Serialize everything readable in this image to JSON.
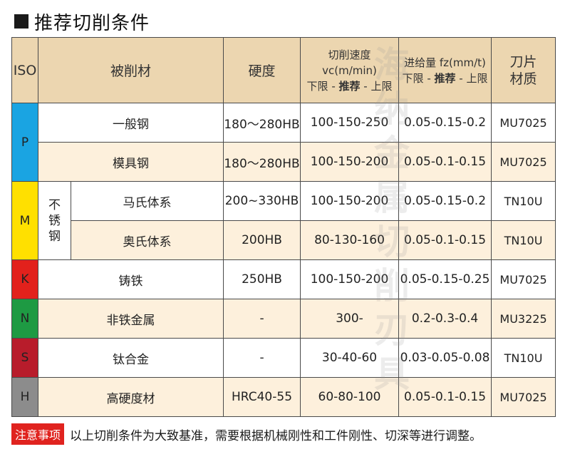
{
  "title": "推荐切削条件",
  "header": {
    "iso": "ISO",
    "material": "被削材",
    "hardness": "硬度",
    "speed_line1": "切削速度 vc(m/min)",
    "speed_line2_a": "下限 - ",
    "speed_line2_b": "推荐",
    "speed_line2_c": " - 上限",
    "feed_line1": "进给量 fz(mm/t)",
    "feed_line2_a": "下限 - ",
    "feed_line2_b": "推荐",
    "feed_line2_c": " - 上限",
    "blade_line1": "刀片",
    "blade_line2": "材质"
  },
  "groups": {
    "P": "P",
    "M": "M",
    "K": "K",
    "N": "N",
    "S": "S",
    "H": "H",
    "stainless": "不锈钢"
  },
  "rows": [
    {
      "material": "一般钢",
      "hardness": "180～280HB",
      "speed": "100-150-250",
      "feed": "0.05-0.15-0.2",
      "grade": "MU7025"
    },
    {
      "material": "模具钢",
      "hardness": "180～280HB",
      "speed": "100-150-200",
      "feed": "0.05-0.1-0.15",
      "grade": "MU7025"
    },
    {
      "material": "马氏体系",
      "hardness": "200~330HB",
      "speed": "100-150-200",
      "feed": "0.05-0.15-0.2",
      "grade": "TN10U"
    },
    {
      "material": "奥氏体系",
      "hardness": "200HB",
      "speed": "80-130-160",
      "feed": "0.05-0.1-0.15",
      "grade": "TN10U"
    },
    {
      "material": "铸铁",
      "hardness": "250HB",
      "speed": "100-150-200",
      "feed": "0.05-0.15-0.25",
      "grade": "MU7025"
    },
    {
      "material": "非铁金属",
      "hardness": "-",
      "speed": "300-",
      "feed": "0.2-0.3-0.4",
      "grade": "MU3225"
    },
    {
      "material": "钛合金",
      "hardness": "-",
      "speed": "30-40-60",
      "feed": "0.03-0.05-0.08",
      "grade": "TN10U"
    },
    {
      "material": "高硬度材",
      "hardness": "HRC40-55",
      "speed": "60-80-100",
      "feed": "0.05-0.1-0.15",
      "grade": "MU7025"
    }
  ],
  "note": {
    "tag": "注意事项",
    "text": "以上切削条件为大致基准，需要根据机械刚性和工件刚性、切深等进行调整。"
  },
  "watermark": "海纳金属切削刃具",
  "colors": {
    "header_bg": "#ecd6b0",
    "alt_row_bg": "#fdf0dc",
    "iso_P": "#1aa4e2",
    "iso_M": "#ffe000",
    "iso_K": "#e2211c",
    "iso_N": "#1e9a43",
    "iso_S": "#b81c2b",
    "iso_H": "#8c8c8c",
    "note_tag": "#e0231f"
  }
}
